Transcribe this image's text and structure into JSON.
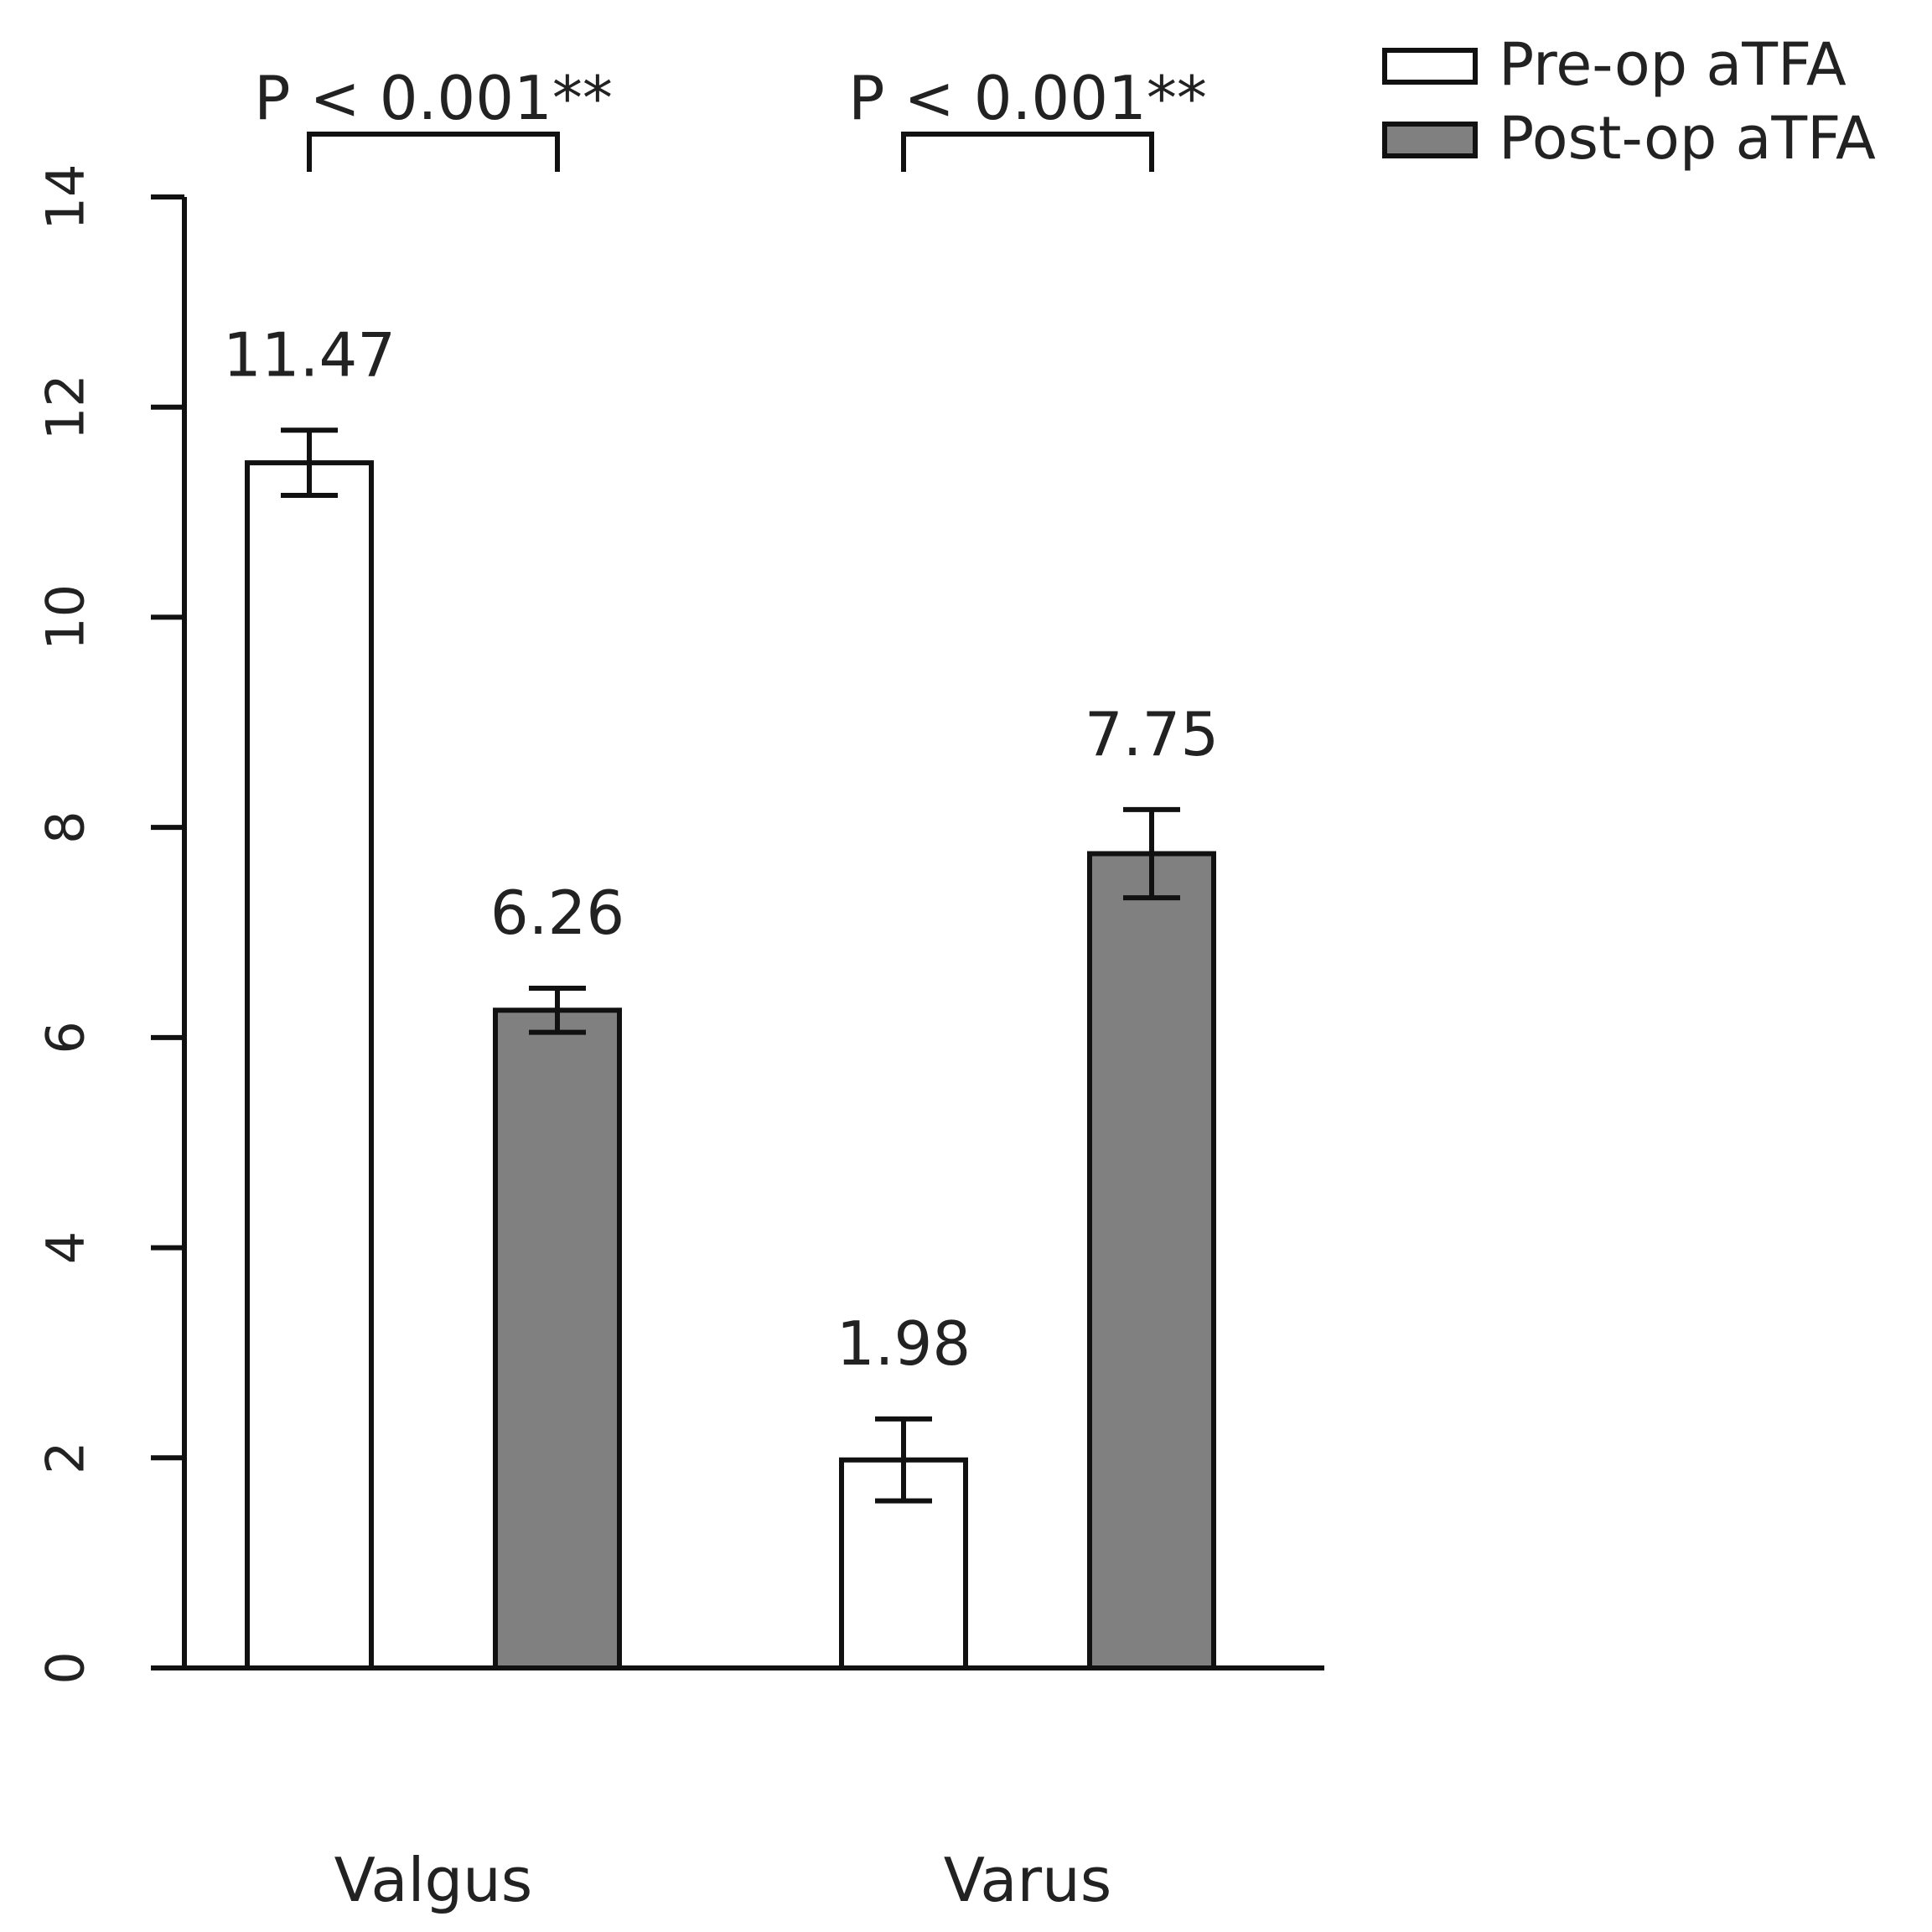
{
  "chart_data": {
    "type": "bar",
    "categories": [
      "Valgus",
      "Varus"
    ],
    "series": [
      {
        "name": "Pre-op aTFA",
        "color": "#ffffff",
        "values": [
          11.47,
          1.98
        ],
        "error": [
          0.31,
          0.39
        ],
        "labels": [
          "11.47",
          "1.98"
        ]
      },
      {
        "name": "Post-op aTFA",
        "color": "#808080",
        "values": [
          6.26,
          7.75
        ],
        "error": [
          0.21,
          0.42
        ],
        "labels": [
          "6.26",
          "7.75"
        ]
      }
    ],
    "significance": [
      "P < 0.001**",
      "P < 0.001**"
    ],
    "yticks": [
      0,
      2,
      4,
      6,
      8,
      10,
      12,
      14
    ],
    "ylim": [
      0,
      14
    ],
    "legend_position": "top-right",
    "grid": false
  }
}
